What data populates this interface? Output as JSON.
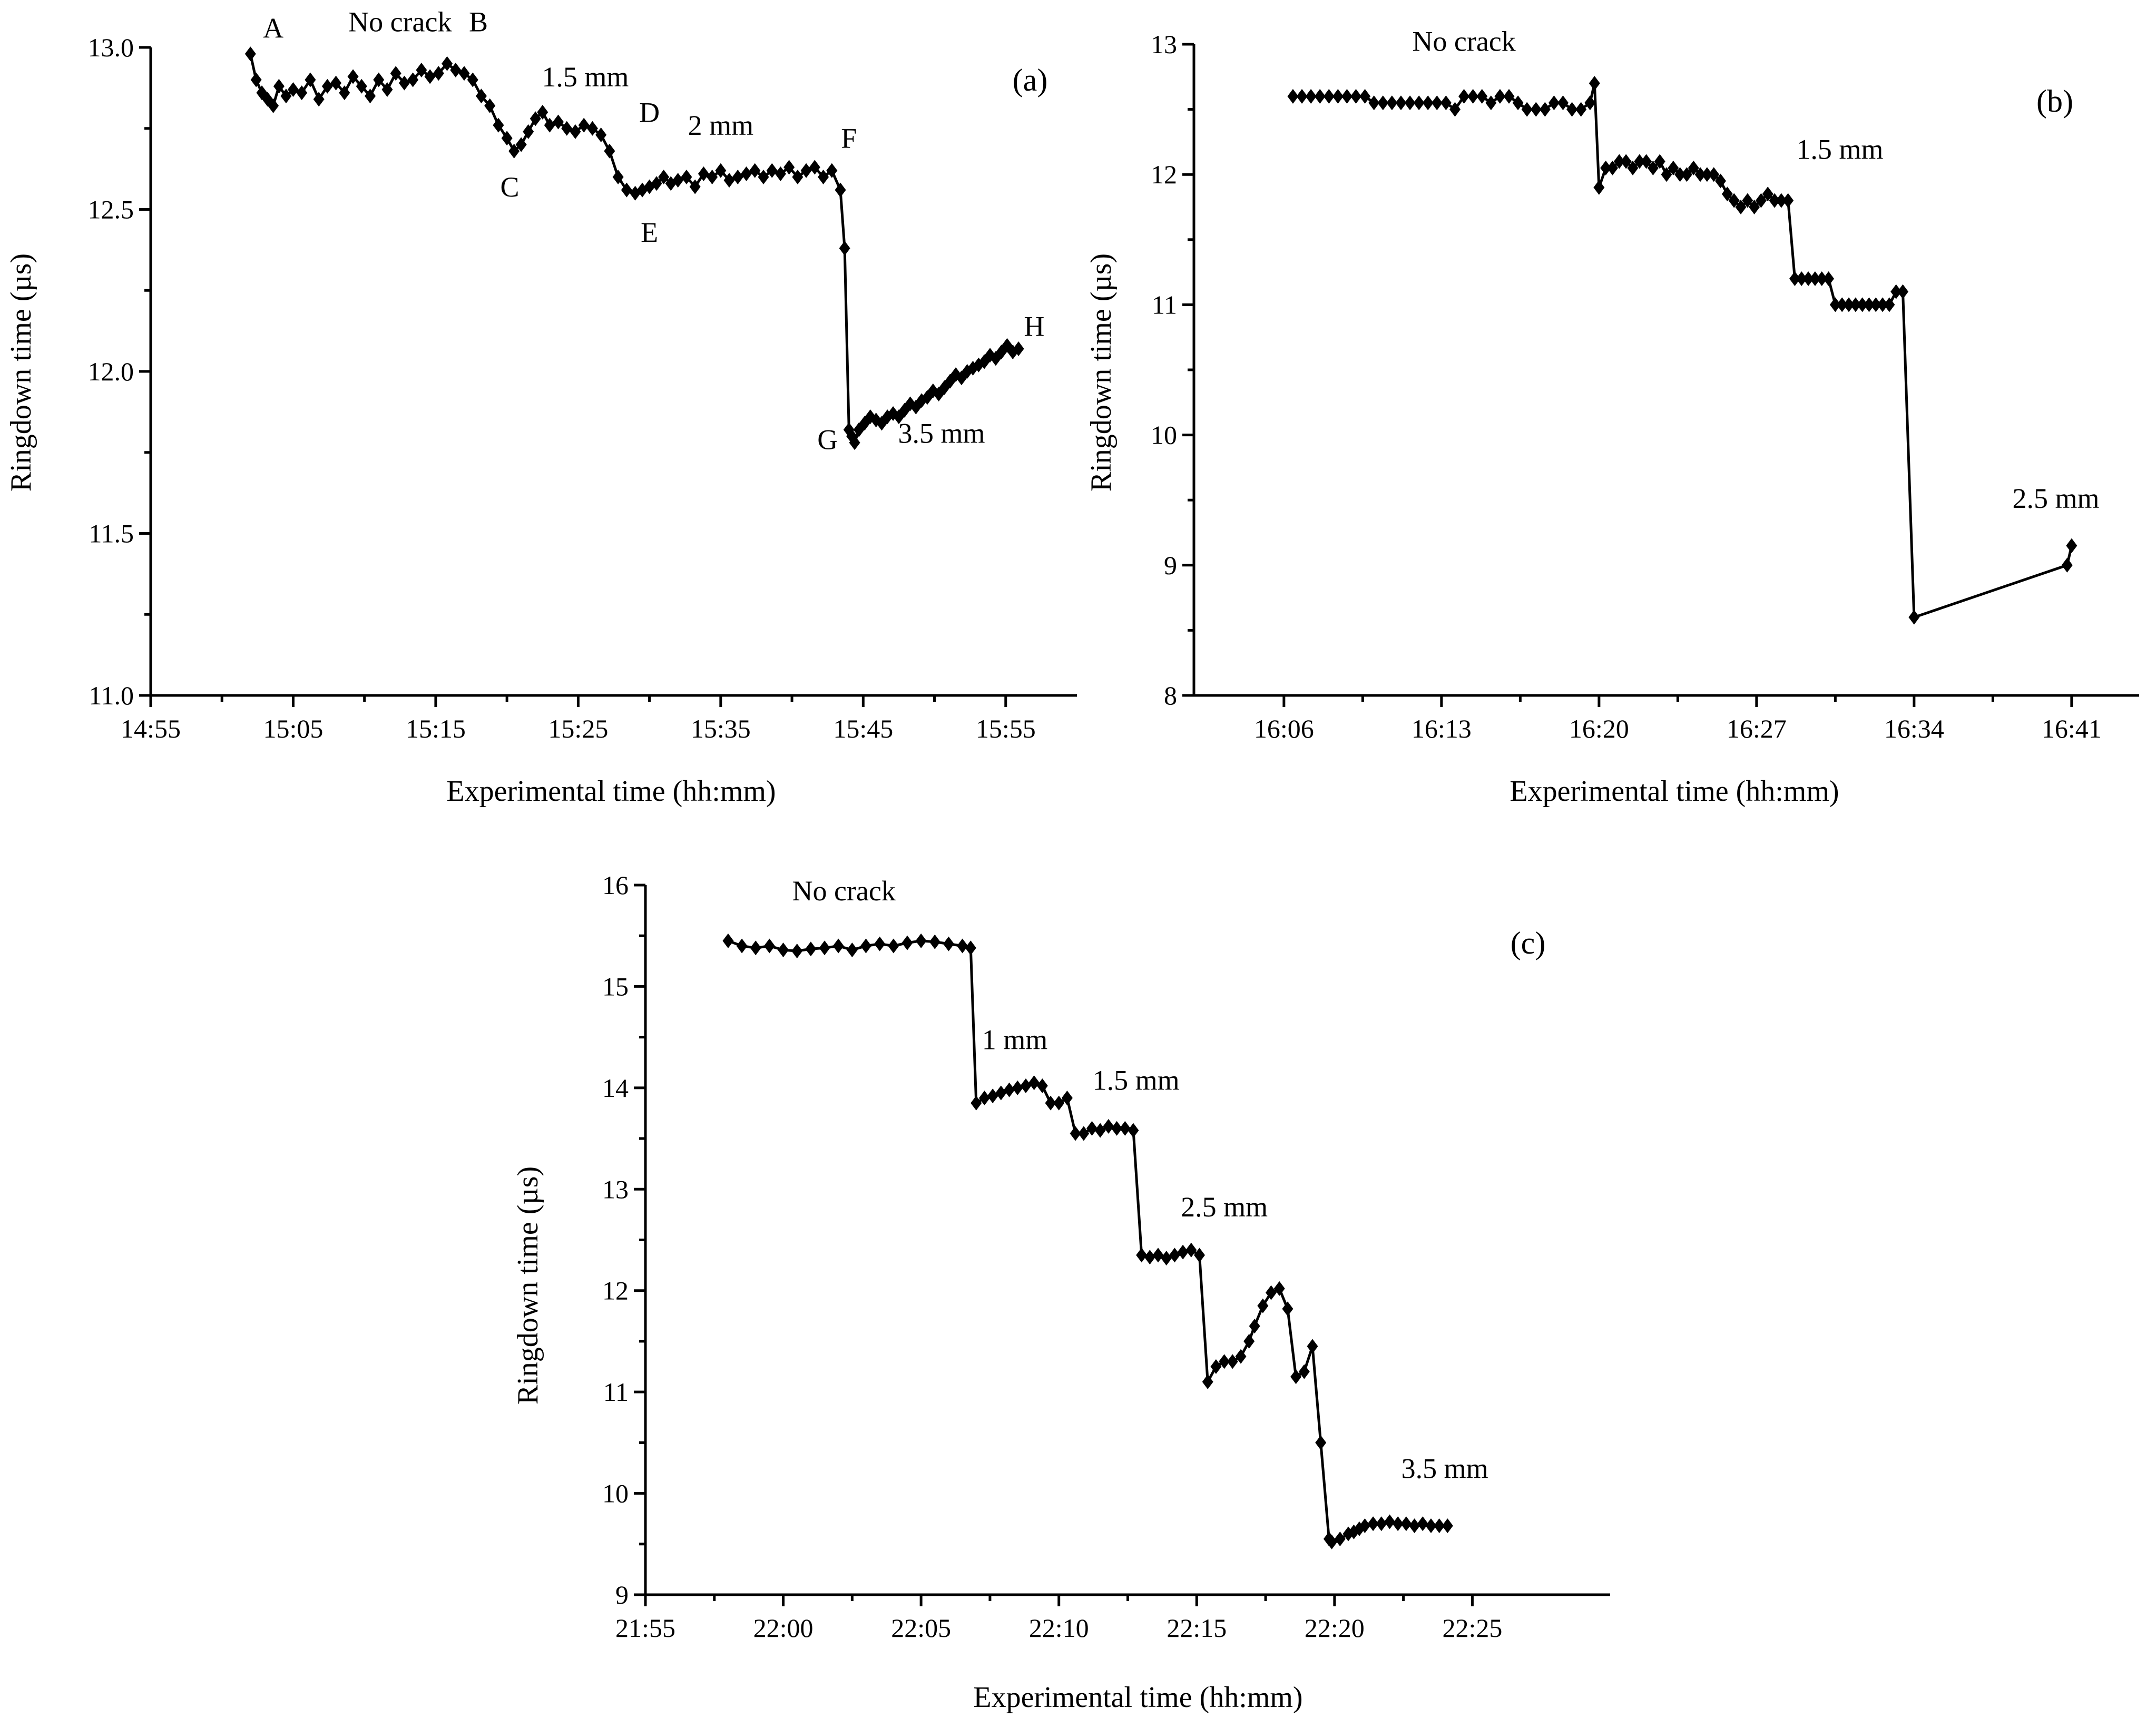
{
  "chart_data": [
    {
      "id": "a",
      "type": "line",
      "panel_label": "(a)",
      "xlabel": "Experimental time (hh:mm)",
      "ylabel": "Ringdown time (µs)",
      "x_unit": "minutes after 14:55",
      "xlim": [
        0,
        65
      ],
      "ylim": [
        11.0,
        13.0
      ],
      "xticks": [
        {
          "value": 0,
          "label": "14:55"
        },
        {
          "value": 10,
          "label": "15:05"
        },
        {
          "value": 20,
          "label": "15:15"
        },
        {
          "value": 30,
          "label": "15:25"
        },
        {
          "value": 40,
          "label": "15:35"
        },
        {
          "value": 50,
          "label": "15:45"
        },
        {
          "value": 60,
          "label": "15:55"
        }
      ],
      "yticks": [
        {
          "value": 11.0,
          "label": "11.0"
        },
        {
          "value": 11.5,
          "label": "11.5"
        },
        {
          "value": 12.0,
          "label": "12.0"
        },
        {
          "value": 12.5,
          "label": "12.5"
        },
        {
          "value": 13.0,
          "label": "13.0"
        }
      ],
      "series": [
        {
          "name": "Ringdown time",
          "x": [
            7.0,
            7.4,
            7.8,
            8.2,
            8.6,
            9.0,
            9.5,
            10.0,
            10.6,
            11.2,
            11.8,
            12.4,
            13.0,
            13.6,
            14.2,
            14.8,
            15.4,
            16.0,
            16.6,
            17.2,
            17.8,
            18.4,
            19.0,
            19.6,
            20.2,
            20.8,
            21.4,
            22.0,
            22.6,
            23.2,
            23.8,
            24.4,
            25.0,
            25.5,
            26.0,
            26.5,
            27.0,
            27.5,
            28.0,
            28.6,
            29.2,
            29.8,
            30.4,
            31.0,
            31.6,
            32.2,
            32.8,
            33.4,
            34.0,
            34.5,
            35.0,
            35.5,
            36.0,
            36.5,
            37.0,
            37.6,
            38.2,
            38.8,
            39.4,
            40.0,
            40.6,
            41.2,
            41.8,
            42.4,
            43.0,
            43.6,
            44.2,
            44.8,
            45.4,
            46.0,
            46.6,
            47.2,
            47.8,
            48.4,
            48.7,
            49.0,
            49.2,
            49.4,
            49.7,
            50.1,
            50.5,
            50.9,
            51.3,
            51.7,
            52.1,
            52.5,
            52.9,
            53.3,
            53.7,
            54.1,
            54.5,
            54.9,
            55.3,
            55.7,
            56.1,
            56.5,
            56.9,
            57.3,
            57.7,
            58.1,
            58.5,
            58.9,
            59.3,
            59.7,
            60.1,
            60.5,
            60.9
          ],
          "y": [
            12.98,
            12.9,
            12.86,
            12.84,
            12.82,
            12.88,
            12.85,
            12.87,
            12.86,
            12.9,
            12.84,
            12.88,
            12.89,
            12.86,
            12.91,
            12.88,
            12.85,
            12.9,
            12.87,
            12.92,
            12.89,
            12.9,
            12.93,
            12.91,
            12.92,
            12.95,
            12.93,
            12.92,
            12.9,
            12.85,
            12.82,
            12.76,
            12.72,
            12.68,
            12.7,
            12.74,
            12.78,
            12.8,
            12.76,
            12.77,
            12.75,
            12.74,
            12.76,
            12.75,
            12.73,
            12.68,
            12.6,
            12.56,
            12.55,
            12.56,
            12.57,
            12.58,
            12.6,
            12.58,
            12.59,
            12.6,
            12.57,
            12.61,
            12.6,
            12.62,
            12.59,
            12.6,
            12.61,
            12.62,
            12.6,
            12.62,
            12.61,
            12.63,
            12.6,
            12.62,
            12.63,
            12.6,
            12.62,
            12.56,
            12.38,
            11.82,
            11.8,
            11.78,
            11.82,
            11.84,
            11.86,
            11.85,
            11.84,
            11.86,
            11.87,
            11.86,
            11.88,
            11.9,
            11.89,
            11.91,
            11.92,
            11.94,
            11.93,
            11.95,
            11.97,
            11.99,
            11.98,
            12.0,
            12.01,
            12.02,
            12.03,
            12.05,
            12.04,
            12.06,
            12.08,
            12.06,
            12.07
          ]
        }
      ],
      "annotations": [
        {
          "text": "A",
          "x": 8.6,
          "y": 13.03
        },
        {
          "text": "No crack",
          "x": 17.5,
          "y": 13.05
        },
        {
          "text": "B",
          "x": 23.0,
          "y": 13.05
        },
        {
          "text": "1.5 mm",
          "x": 30.5,
          "y": 12.88
        },
        {
          "text": "C",
          "x": 25.2,
          "y": 12.54
        },
        {
          "text": "D",
          "x": 35.0,
          "y": 12.77
        },
        {
          "text": "2 mm",
          "x": 40.0,
          "y": 12.73
        },
        {
          "text": "E",
          "x": 35.0,
          "y": 12.4
        },
        {
          "text": "F",
          "x": 49.0,
          "y": 12.69
        },
        {
          "text": "G",
          "x": 47.5,
          "y": 11.76
        },
        {
          "text": "3.5 mm",
          "x": 55.5,
          "y": 11.78
        },
        {
          "text": "H",
          "x": 62.0,
          "y": 12.11
        }
      ]
    },
    {
      "id": "b",
      "type": "line",
      "panel_label": "(b)",
      "xlabel": "Experimental time (hh:mm)",
      "ylabel": "Ringdown time (µs)",
      "x_unit": "minutes after 16:06",
      "xlim": [
        -4,
        38
      ],
      "ylim": [
        8,
        13
      ],
      "xticks": [
        {
          "value": 0,
          "label": "16:06"
        },
        {
          "value": 7,
          "label": "16:13"
        },
        {
          "value": 14,
          "label": "16:20"
        },
        {
          "value": 21,
          "label": "16:27"
        },
        {
          "value": 28,
          "label": "16:34"
        },
        {
          "value": 35,
          "label": "16:41"
        }
      ],
      "yticks": [
        {
          "value": 8,
          "label": "8"
        },
        {
          "value": 9,
          "label": "9"
        },
        {
          "value": 10,
          "label": "10"
        },
        {
          "value": 11,
          "label": "11"
        },
        {
          "value": 12,
          "label": "12"
        },
        {
          "value": 13,
          "label": "13"
        }
      ],
      "series": [
        {
          "name": "Ringdown time",
          "x": [
            0.4,
            0.8,
            1.2,
            1.6,
            2.0,
            2.4,
            2.8,
            3.2,
            3.6,
            4.0,
            4.4,
            4.8,
            5.2,
            5.6,
            6.0,
            6.4,
            6.8,
            7.2,
            7.6,
            8.0,
            8.4,
            8.8,
            9.2,
            9.6,
            10.0,
            10.4,
            10.8,
            11.2,
            11.6,
            12.0,
            12.4,
            12.8,
            13.2,
            13.6,
            13.8,
            14.0,
            14.3,
            14.6,
            14.9,
            15.2,
            15.5,
            15.8,
            16.1,
            16.4,
            16.7,
            17.0,
            17.3,
            17.6,
            17.9,
            18.2,
            18.5,
            18.8,
            19.1,
            19.4,
            19.7,
            20.0,
            20.3,
            20.6,
            20.9,
            21.2,
            21.5,
            21.8,
            22.1,
            22.4,
            22.7,
            23.0,
            23.3,
            23.6,
            23.9,
            24.2,
            24.5,
            24.8,
            25.1,
            25.4,
            25.7,
            26.0,
            26.3,
            26.6,
            26.9,
            27.2,
            27.5,
            28.0,
            34.8,
            35.0
          ],
          "y": [
            12.6,
            12.6,
            12.6,
            12.6,
            12.6,
            12.6,
            12.6,
            12.6,
            12.6,
            12.55,
            12.55,
            12.55,
            12.55,
            12.55,
            12.55,
            12.55,
            12.55,
            12.55,
            12.5,
            12.6,
            12.6,
            12.6,
            12.55,
            12.6,
            12.6,
            12.55,
            12.5,
            12.5,
            12.5,
            12.55,
            12.55,
            12.5,
            12.5,
            12.55,
            12.7,
            11.9,
            12.05,
            12.05,
            12.1,
            12.1,
            12.05,
            12.1,
            12.1,
            12.05,
            12.1,
            12.0,
            12.05,
            12.0,
            12.0,
            12.05,
            12.0,
            12.0,
            12.0,
            11.95,
            11.85,
            11.8,
            11.75,
            11.8,
            11.75,
            11.8,
            11.85,
            11.8,
            11.8,
            11.8,
            11.2,
            11.2,
            11.2,
            11.2,
            11.2,
            11.2,
            11.0,
            11.0,
            11.0,
            11.0,
            11.0,
            11.0,
            11.0,
            11.0,
            11.0,
            11.1,
            11.1,
            8.6,
            9.0,
            9.15
          ]
        }
      ],
      "annotations": [
        {
          "text": "No crack",
          "x": 8.0,
          "y": 12.95
        },
        {
          "text": "1.5 mm",
          "x": 24.7,
          "y": 12.12
        },
        {
          "text": "2.5 mm",
          "x": 34.3,
          "y": 9.44
        }
      ]
    },
    {
      "id": "c",
      "type": "line",
      "panel_label": "(c)",
      "xlabel": "Experimental time (hh:mm)",
      "ylabel": "Ringdown time (µs)",
      "x_unit": "minutes after 21:55",
      "xlim": [
        0,
        35
      ],
      "ylim": [
        9,
        16
      ],
      "xticks": [
        {
          "value": 0,
          "label": "21:55"
        },
        {
          "value": 5,
          "label": "22:00"
        },
        {
          "value": 10,
          "label": "22:05"
        },
        {
          "value": 15,
          "label": "22:10"
        },
        {
          "value": 20,
          "label": "22:15"
        },
        {
          "value": 25,
          "label": "22:20"
        },
        {
          "value": 30,
          "label": "22:25"
        }
      ],
      "yticks": [
        {
          "value": 9,
          "label": "9"
        },
        {
          "value": 10,
          "label": "10"
        },
        {
          "value": 11,
          "label": "11"
        },
        {
          "value": 12,
          "label": "12"
        },
        {
          "value": 13,
          "label": "13"
        },
        {
          "value": 14,
          "label": "14"
        },
        {
          "value": 15,
          "label": "15"
        },
        {
          "value": 16,
          "label": "16"
        }
      ],
      "series": [
        {
          "name": "Ringdown time",
          "x": [
            3.0,
            3.5,
            4.0,
            4.5,
            5.0,
            5.5,
            6.0,
            6.5,
            7.0,
            7.5,
            8.0,
            8.5,
            9.0,
            9.5,
            10.0,
            10.5,
            11.0,
            11.5,
            11.8,
            12.0,
            12.3,
            12.6,
            12.9,
            13.2,
            13.5,
            13.8,
            14.1,
            14.4,
            14.7,
            15.0,
            15.3,
            15.6,
            15.9,
            16.2,
            16.5,
            16.8,
            17.1,
            17.4,
            17.7,
            18.0,
            18.3,
            18.6,
            18.9,
            19.2,
            19.5,
            19.8,
            20.1,
            20.4,
            20.7,
            21.0,
            21.3,
            21.6,
            21.9,
            22.1,
            22.4,
            22.7,
            23.0,
            23.3,
            23.6,
            23.9,
            24.2,
            24.5,
            24.8,
            24.9,
            25.2,
            25.5,
            25.7,
            25.9,
            26.1,
            26.4,
            26.7,
            27.0,
            27.3,
            27.6,
            27.9,
            28.2,
            28.5,
            28.8,
            29.1
          ],
          "y": [
            15.45,
            15.4,
            15.38,
            15.4,
            15.36,
            15.35,
            15.37,
            15.38,
            15.4,
            15.36,
            15.4,
            15.42,
            15.4,
            15.43,
            15.45,
            15.44,
            15.42,
            15.4,
            15.38,
            13.85,
            13.9,
            13.92,
            13.95,
            13.98,
            14.0,
            14.02,
            14.05,
            14.02,
            13.85,
            13.85,
            13.9,
            13.55,
            13.55,
            13.6,
            13.58,
            13.62,
            13.6,
            13.6,
            13.58,
            12.35,
            12.33,
            12.35,
            12.32,
            12.35,
            12.38,
            12.4,
            12.35,
            11.1,
            11.25,
            11.3,
            11.3,
            11.35,
            11.5,
            11.65,
            11.85,
            11.98,
            12.02,
            11.82,
            11.15,
            11.2,
            11.45,
            10.5,
            9.55,
            9.52,
            9.55,
            9.6,
            9.62,
            9.65,
            9.68,
            9.7,
            9.7,
            9.72,
            9.7,
            9.7,
            9.68,
            9.7,
            9.68,
            9.68,
            9.68
          ]
        }
      ],
      "annotations": [
        {
          "text": "No crack",
          "x": 7.2,
          "y": 15.85
        },
        {
          "text": "1 mm",
          "x": 13.4,
          "y": 14.38
        },
        {
          "text": "1.5 mm",
          "x": 17.8,
          "y": 13.98
        },
        {
          "text": "2.5 mm",
          "x": 21.0,
          "y": 12.73
        },
        {
          "text": "3.5 mm",
          "x": 29.0,
          "y": 10.15
        }
      ]
    }
  ]
}
